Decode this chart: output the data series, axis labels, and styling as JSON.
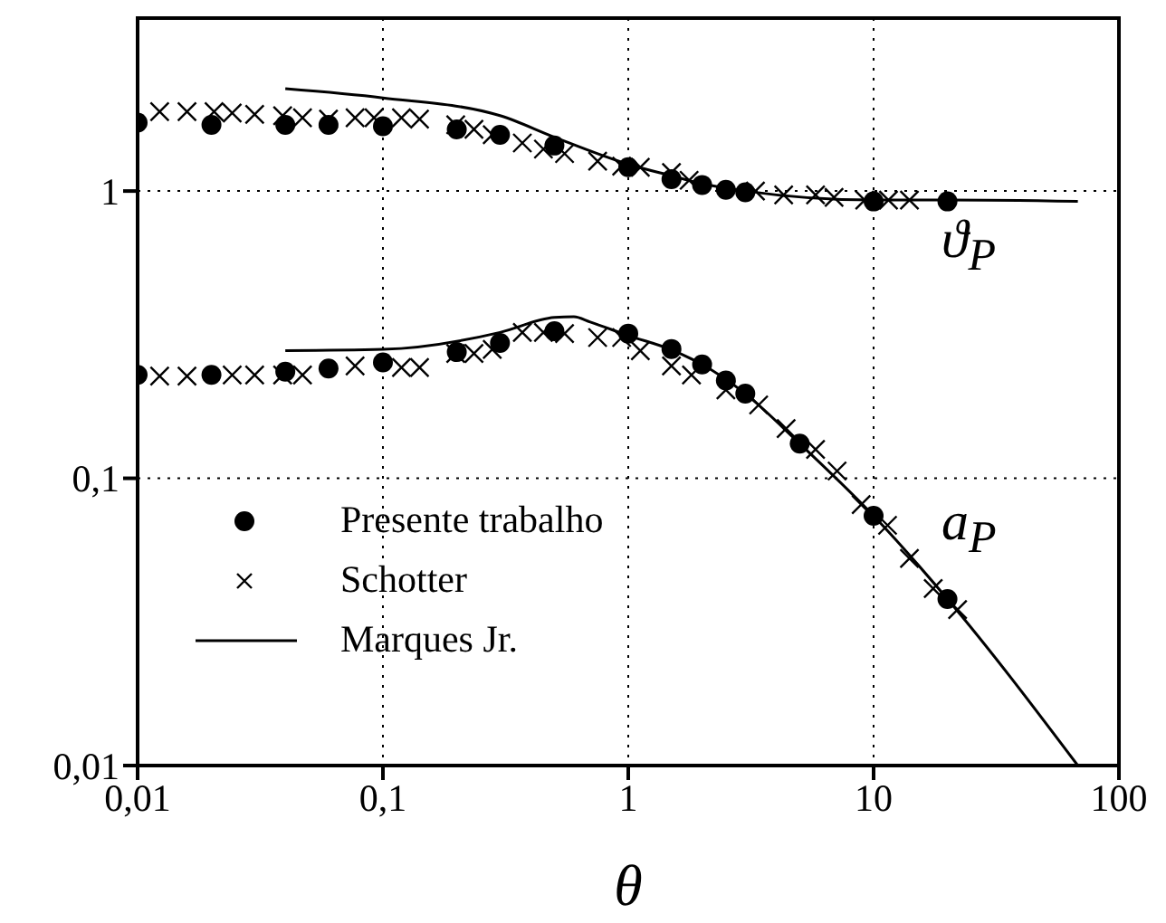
{
  "chart_data": {
    "type": "scatter",
    "xlabel": "θ",
    "log": "xy",
    "grid": true,
    "legend": "bottom left",
    "xlim": [
      0.01,
      100
    ],
    "xticks": [
      {
        "value": 0.01,
        "label": "0,01"
      },
      {
        "value": 0.1,
        "label": "0,1"
      },
      1,
      10,
      100
    ],
    "ylim": [
      0.01,
      4
    ],
    "yticks": [
      {
        "value": 0.01,
        "label": "0,01"
      },
      {
        "value": 0.1,
        "label": "0,1"
      },
      1
    ],
    "annotations": [
      "ϑ$_{P}$",
      "a$_{P}$"
    ],
    "series": [
      {
        "name": "Presente trabalho",
        "marker": "circle",
        "color": "#000000",
        "x": [
          0.01,
          0.02,
          0.04,
          0.06,
          0.1,
          0.2,
          0.3,
          0.5,
          1,
          1.5,
          2,
          2.5,
          3,
          10,
          20
        ],
        "values": [
          1.73,
          1.7,
          1.7,
          1.7,
          1.68,
          1.64,
          1.57,
          1.44,
          1.21,
          1.1,
          1.05,
          1.01,
          0.99,
          0.92,
          0.92
        ]
      },
      {
        "name": "Schotter",
        "marker": "cross",
        "color": "#000000",
        "x": [
          0.0123,
          0.0159,
          0.0205,
          0.0243,
          0.03,
          0.039,
          0.047,
          0.06,
          0.077,
          0.092,
          0.119,
          0.141,
          0.198,
          0.235,
          0.279,
          0.37,
          0.451,
          0.55,
          0.75,
          0.94,
          1.12,
          1.5,
          1.77,
          3.3,
          4.3,
          5.8,
          6.9,
          9.2,
          11.5,
          14
        ],
        "values": [
          1.89,
          1.89,
          1.89,
          1.87,
          1.85,
          1.83,
          1.8,
          1.78,
          1.8,
          1.8,
          1.8,
          1.78,
          1.7,
          1.64,
          1.57,
          1.47,
          1.4,
          1.35,
          1.27,
          1.22,
          1.21,
          1.16,
          1.09,
          1.0,
          0.97,
          0.97,
          0.95,
          0.93,
          0.93,
          0.93
        ]
      },
      {
        "name": "Marques Jr.",
        "type": "line",
        "marker": "none",
        "line_style": "solid",
        "color": "#000000",
        "x": [
          0.04,
          0.1,
          0.3,
          0.5,
          1,
          1.5,
          2,
          3,
          10,
          20,
          68
        ],
        "values": [
          2.27,
          2.11,
          1.83,
          1.54,
          1.24,
          1.13,
          1.06,
          1.0,
          0.93,
          0.93,
          0.92
        ]
      },
      {
        "marker": "circle",
        "color": "#000000",
        "x": [
          0.01,
          0.02,
          0.04,
          0.06,
          0.1,
          0.2,
          0.3,
          0.5,
          1,
          1.5,
          2,
          2.5,
          3,
          5,
          10,
          20
        ],
        "values": [
          0.229,
          0.229,
          0.235,
          0.241,
          0.253,
          0.275,
          0.296,
          0.325,
          0.319,
          0.282,
          0.249,
          0.219,
          0.197,
          0.132,
          0.074,
          0.038
        ]
      },
      {
        "marker": "cross",
        "color": "#000000",
        "x": [
          0.0123,
          0.0159,
          0.0243,
          0.03,
          0.039,
          0.047,
          0.077,
          0.119,
          0.141,
          0.198,
          0.235,
          0.279,
          0.37,
          0.451,
          0.55,
          0.75,
          0.94,
          1.12,
          1.5,
          1.81,
          2.5,
          3.4,
          4.4,
          5.8,
          7.1,
          8.9,
          11.4,
          14,
          17.5,
          22
        ],
        "values": [
          0.227,
          0.227,
          0.229,
          0.229,
          0.229,
          0.229,
          0.246,
          0.243,
          0.243,
          0.272,
          0.272,
          0.281,
          0.322,
          0.322,
          0.319,
          0.309,
          0.309,
          0.278,
          0.246,
          0.229,
          0.203,
          0.18,
          0.149,
          0.126,
          0.106,
          0.081,
          0.0686,
          0.0526,
          0.0413,
          0.0349
        ]
      },
      {
        "type": "line",
        "marker": "none",
        "line_style": "solid",
        "color": "#000000",
        "x": [
          0.04,
          0.1,
          0.3,
          0.5,
          0.6,
          0.7,
          1,
          1.5,
          2,
          3,
          5,
          10,
          20,
          68
        ],
        "values": [
          0.278,
          0.281,
          0.322,
          0.363,
          0.365,
          0.35,
          0.314,
          0.28,
          0.249,
          0.197,
          0.132,
          0.074,
          0.038,
          0.01
        ]
      }
    ]
  }
}
